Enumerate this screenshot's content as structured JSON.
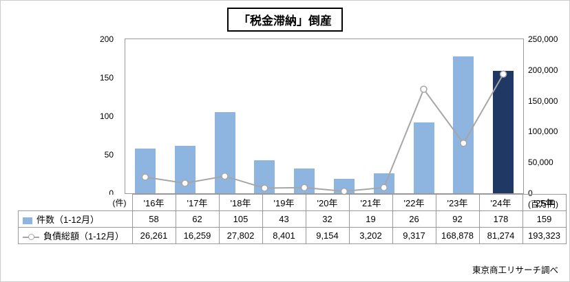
{
  "title": "「税金滞納」倒産",
  "footer": "東京商工リサーチ調べ",
  "left_axis_unit": "(件)",
  "right_axis_unit": "(百万円)",
  "chart_data": {
    "type": "bar+line",
    "categories": [
      "'16年",
      "'17年",
      "'18年",
      "'19年",
      "'20年",
      "'21年",
      "'22年",
      "'23年",
      "'24年",
      "'25年"
    ],
    "series": [
      {
        "name": "件数（1-12月）",
        "type": "bar",
        "axis": "left",
        "values": [
          58,
          62,
          105,
          43,
          32,
          19,
          26,
          92,
          178,
          159
        ]
      },
      {
        "name": "負債総額（1-12月）",
        "type": "line",
        "axis": "right",
        "values": [
          26261,
          16259,
          27802,
          8401,
          9154,
          3202,
          9317,
          168878,
          81274,
          193323
        ]
      }
    ],
    "left_axis": {
      "ticks": [
        0,
        50,
        100,
        150,
        200
      ],
      "max": 200,
      "unit": "(件)"
    },
    "right_axis": {
      "ticks": [
        "0",
        "50,000",
        "100,000",
        "150,000",
        "200,000",
        "250,000"
      ],
      "max": 250000,
      "unit": "(百万円)"
    },
    "bar_colors": {
      "default": "#8eb4e0",
      "highlight_last": "#1f3864"
    },
    "line_color": "#a6a6a6",
    "grid": false,
    "legend_position": "table-left"
  },
  "table": {
    "rows": [
      {
        "label": "件数（1-12月）",
        "values": [
          "58",
          "62",
          "105",
          "43",
          "32",
          "19",
          "26",
          "92",
          "178",
          "159"
        ]
      },
      {
        "label": "負債総額（1-12月）",
        "values": [
          "26,261",
          "16,259",
          "27,802",
          "8,401",
          "9,154",
          "3,202",
          "9,317",
          "168,878",
          "81,274",
          "193,323"
        ]
      }
    ]
  }
}
